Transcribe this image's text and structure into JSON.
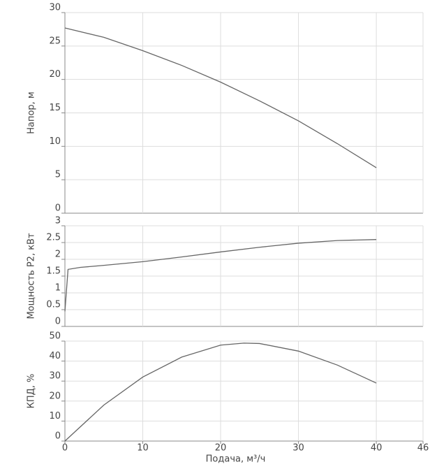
{
  "chart_data": [
    {
      "type": "line",
      "ylabel": "Напор, м",
      "color": "#666666",
      "grid": true,
      "x": [
        0,
        5,
        10,
        15,
        20,
        25,
        30,
        35,
        40
      ],
      "values": [
        27.7,
        26.3,
        24.3,
        22.1,
        19.6,
        16.8,
        13.8,
        10.4,
        6.8
      ],
      "xlim": [
        0,
        46
      ],
      "xticks": [
        0,
        10,
        20,
        30,
        40,
        46
      ],
      "ylim": [
        0,
        30
      ],
      "yticks": [
        0,
        5,
        10,
        15,
        20,
        25,
        30
      ]
    },
    {
      "type": "line",
      "ylabel": "Мощность P2, кВт",
      "color": "#666666",
      "grid": true,
      "x": [
        0,
        0.4,
        2,
        5,
        10,
        15,
        20,
        25,
        30,
        35,
        40
      ],
      "values": [
        0.45,
        1.7,
        1.76,
        1.82,
        1.93,
        2.07,
        2.22,
        2.36,
        2.48,
        2.56,
        2.59
      ],
      "xlim": [
        0,
        46
      ],
      "xticks": [
        0,
        10,
        20,
        30,
        40,
        46
      ],
      "ylim": [
        0,
        3
      ],
      "yticks": [
        0,
        0.5,
        1,
        1.5,
        2,
        2.5,
        3
      ]
    },
    {
      "type": "line",
      "ylabel": "КПД, %",
      "xlabel": "Подача, м³/ч",
      "color": "#666666",
      "grid": true,
      "x": [
        0,
        5,
        10,
        15,
        20,
        23,
        25,
        30,
        35,
        40
      ],
      "values": [
        0,
        18,
        32,
        42,
        48,
        49,
        48.8,
        45,
        38,
        29
      ],
      "xlim": [
        0,
        46
      ],
      "xticks": [
        0,
        10,
        20,
        30,
        40,
        46
      ],
      "ylim": [
        0,
        50
      ],
      "yticks": [
        0,
        10,
        20,
        30,
        40,
        50
      ]
    }
  ]
}
